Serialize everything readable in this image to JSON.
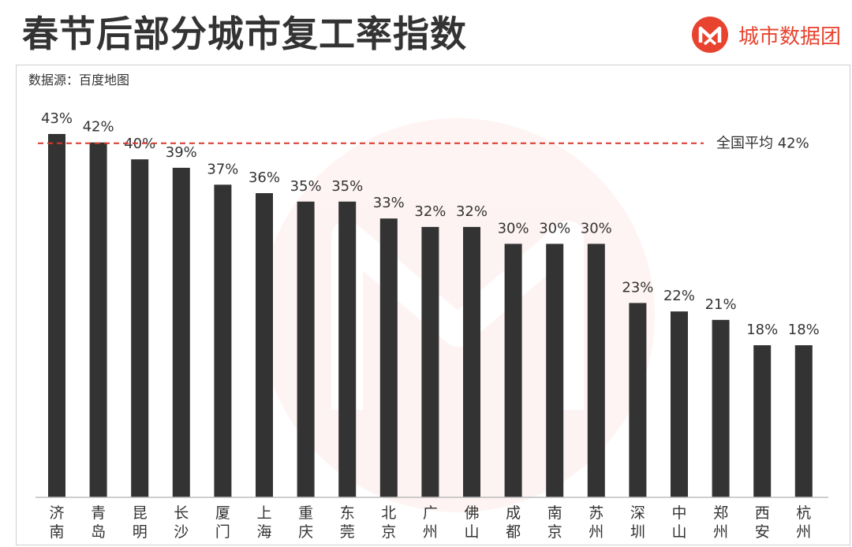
{
  "header": {
    "title": "春节后部分城市复工率指数",
    "brand_name": "城市数据团",
    "source": "数据源：百度地图"
  },
  "colors": {
    "bar": "#333333",
    "reference_line": "#d9372b",
    "brand": "#e8432f"
  },
  "chart_data": {
    "type": "bar",
    "title": "春节后部分城市复工率指数",
    "categories": [
      "济南",
      "青岛",
      "昆明",
      "长沙",
      "厦门",
      "上海",
      "重庆",
      "东莞",
      "北京",
      "广州",
      "佛山",
      "成都",
      "南京",
      "苏州",
      "深圳",
      "中山",
      "郑州",
      "西安",
      "杭州"
    ],
    "values": [
      43,
      42,
      40,
      39,
      37,
      36,
      35,
      35,
      33,
      32,
      32,
      30,
      30,
      30,
      23,
      22,
      21,
      18,
      18
    ],
    "value_labels": [
      "43%",
      "42%",
      "40%",
      "39%",
      "37%",
      "36%",
      "35%",
      "35%",
      "33%",
      "32%",
      "32%",
      "30%",
      "30%",
      "30%",
      "23%",
      "22%",
      "21%",
      "18%",
      "18%"
    ],
    "reference_line": {
      "value": 42,
      "label": "全国平均 42%"
    },
    "ylim": [
      0,
      43
    ],
    "xlabel": "",
    "ylabel": "",
    "grid": false
  }
}
